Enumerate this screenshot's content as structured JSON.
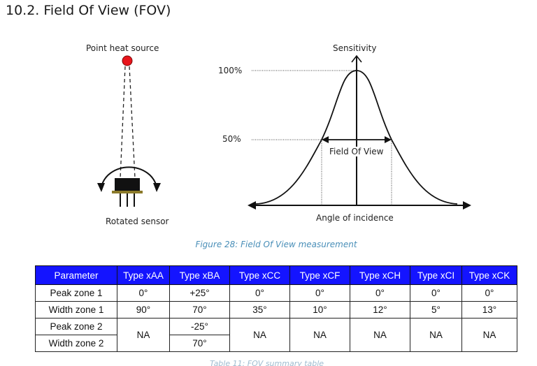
{
  "section_title": "10.2. Field Of View (FOV)",
  "figure": {
    "point_source_label": "Point heat source",
    "rotated_sensor_label": "Rotated sensor",
    "sensitivity_label": "Sensitivity",
    "level_100_label": "100%",
    "level_50_label": "50%",
    "fov_label": "Field Of View",
    "angle_label": "Angle of incidence",
    "colors": {
      "heat_source": "#e8141b",
      "sensor_body": "#111111",
      "sensor_base": "#8b7a2a"
    }
  },
  "caption": "Figure 28: Field Of View measurement",
  "table": {
    "headers": [
      "Parameter",
      "Type xAA",
      "Type xBA",
      "Type xCC",
      "Type xCF",
      "Type xCH",
      "Type xCI",
      "Type xCK"
    ],
    "rows": {
      "peak1": [
        "Peak zone 1",
        "0°",
        "+25°",
        "0°",
        "0°",
        "0°",
        "0°",
        "0°"
      ],
      "width1": [
        "Width zone 1",
        "90°",
        "70°",
        "35°",
        "10°",
        "12°",
        "5°",
        "13°"
      ],
      "peak2": {
        "label": "Peak zone 2",
        "xBA": "-25°"
      },
      "width2": {
        "label": "Width zone 2",
        "xBA": "70°"
      },
      "na": "NA"
    },
    "header_color": "#1414ff"
  },
  "next_caption_partial": "Table 11: FOV summary table"
}
